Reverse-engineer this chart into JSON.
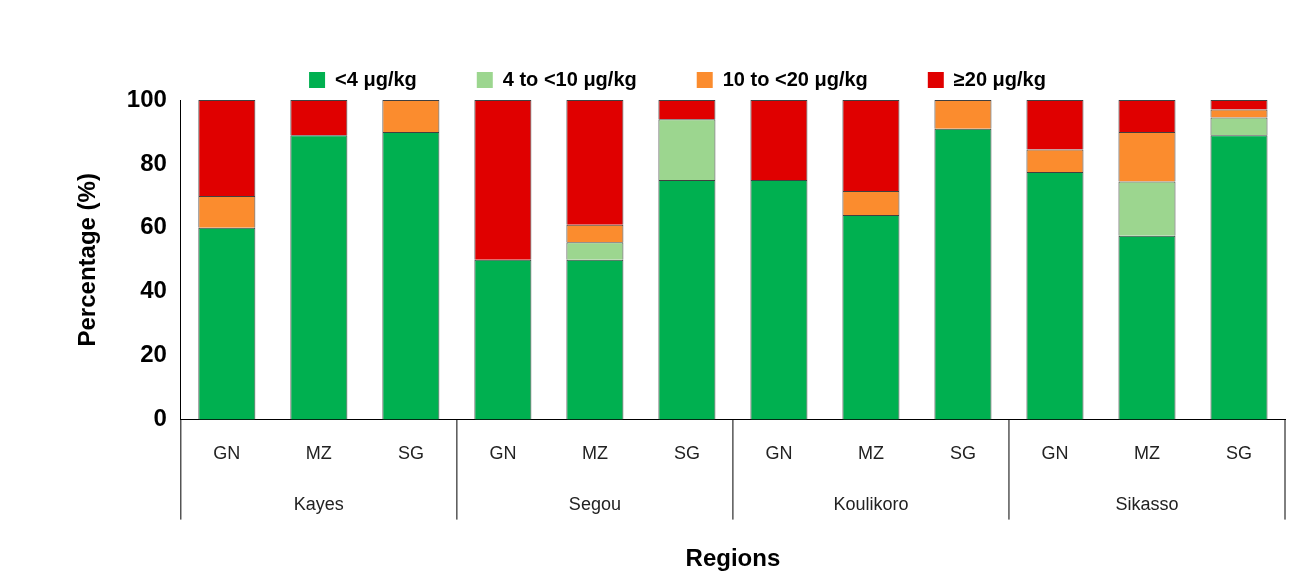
{
  "chart_data": {
    "type": "bar",
    "stacked": true,
    "xlabel": "Regions",
    "ylabel": "Percentage (%)",
    "categories": [
      "GN",
      "MZ",
      "SG",
      "GN",
      "MZ",
      "SG",
      "GN",
      "MZ",
      "SG",
      "GN",
      "MZ",
      "SG"
    ],
    "annotations": [
      "Kayes",
      "Segou",
      "Koulikoro",
      "Sikasso"
    ],
    "ylim": [
      0,
      100
    ],
    "yticks": [
      0,
      20,
      40,
      60,
      80,
      100
    ],
    "grid": false,
    "legend": "top",
    "series": [
      {
        "name": "<4 μg/kg",
        "color": "#00b050",
        "values": [
          60,
          89,
          90,
          50,
          50,
          75,
          75,
          64,
          91,
          77.5,
          57.5,
          89
        ]
      },
      {
        "name": "4 to <10 μg/kg",
        "color": "#9cd68f",
        "values": [
          0,
          0,
          0,
          0,
          5.5,
          19,
          0,
          0,
          0,
          0,
          17,
          5.5
        ]
      },
      {
        "name": "10 to <20 μg/kg",
        "color": "#fb8c2e",
        "values": [
          10,
          0,
          10,
          0,
          5.5,
          0,
          0,
          7.5,
          9,
          7,
          15.5,
          2.5
        ]
      },
      {
        "name": "≥20 μg/kg",
        "color": "#e00000",
        "values": [
          30,
          11,
          0,
          50,
          39,
          6,
          25,
          28.5,
          0,
          15.5,
          10,
          3
        ]
      }
    ]
  }
}
